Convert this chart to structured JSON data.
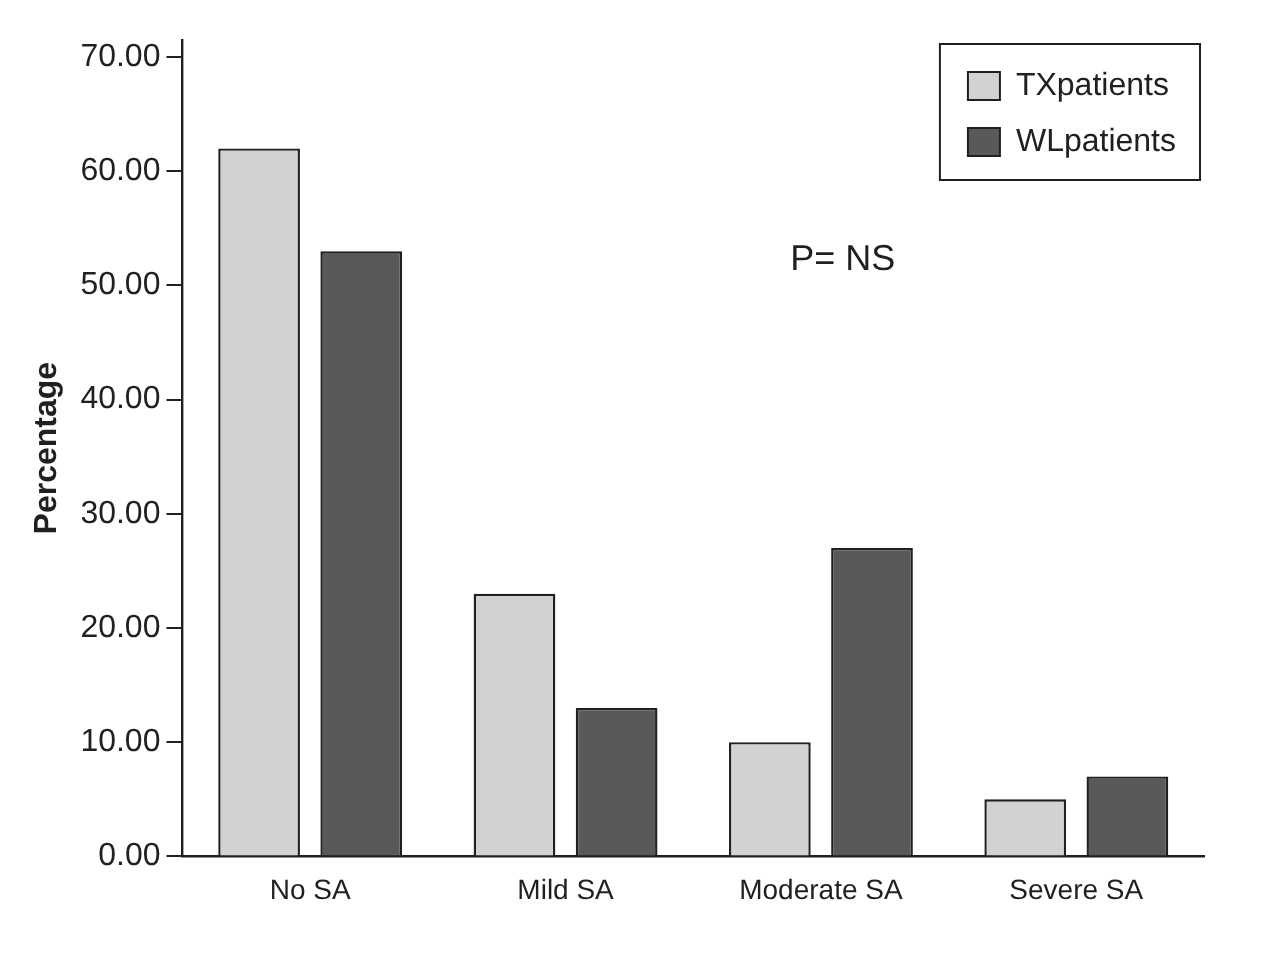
{
  "chart_data": {
    "type": "bar",
    "ylabel": "Percentage",
    "categories": [
      "No SA",
      "Mild SA",
      "Moderate SA",
      "Severe SA"
    ],
    "series": [
      {
        "name": "TXpatients",
        "color": "#d1d2d4",
        "values": [
          62,
          23,
          10,
          5
        ]
      },
      {
        "name": "WLpatients",
        "color": "#58595b",
        "values": [
          53,
          13,
          27,
          7
        ]
      }
    ],
    "ylim": [
      0,
      71.5
    ],
    "yticks": [
      {
        "value": 0,
        "label": "0.00"
      },
      {
        "value": 10,
        "label": "10.00"
      },
      {
        "value": 20,
        "label": "20.00"
      },
      {
        "value": 30,
        "label": "30.00"
      },
      {
        "value": 40,
        "label": "40.00"
      },
      {
        "value": 50,
        "label": "50.00"
      },
      {
        "value": 60,
        "label": "60.00"
      },
      {
        "value": 70,
        "label": "70.00"
      }
    ],
    "grid": false,
    "legend": "top right",
    "annotations": [
      "P= NS"
    ]
  }
}
